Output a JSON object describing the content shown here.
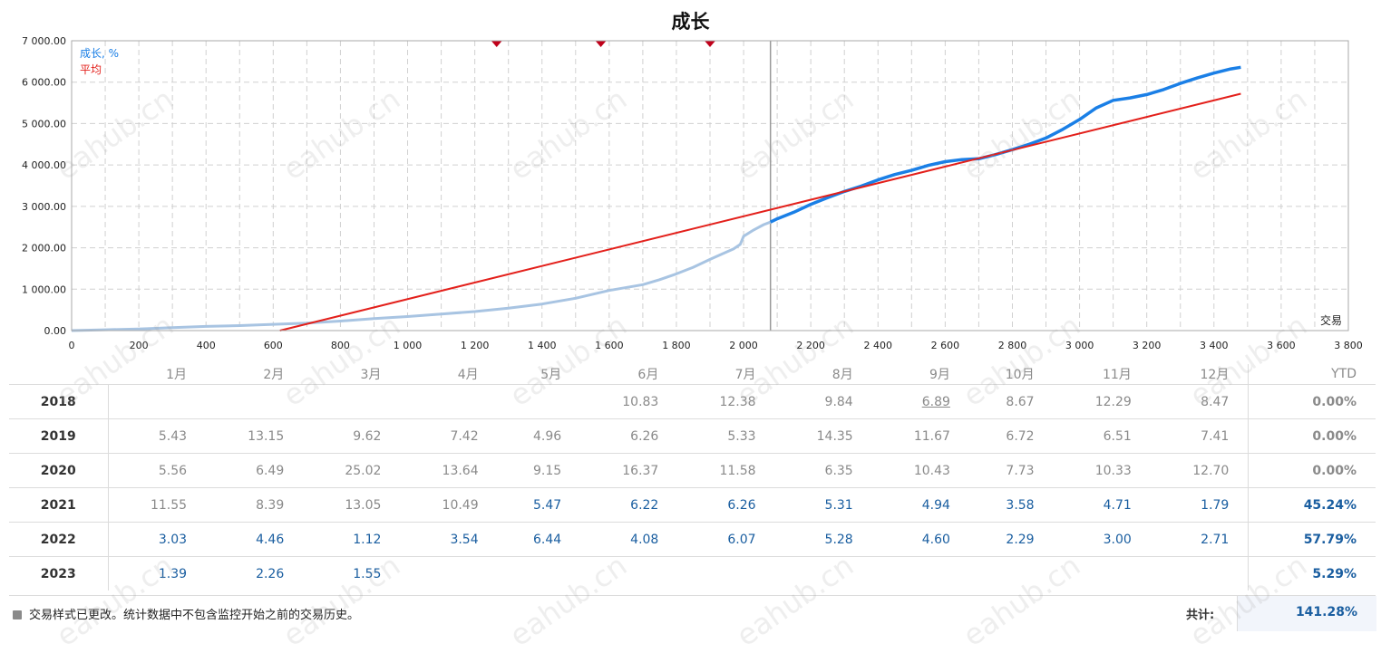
{
  "chart_data": {
    "type": "line",
    "title": "成长",
    "xlabel": "交易",
    "ylabel": "",
    "xlim": [
      0,
      3800
    ],
    "ylim": [
      0,
      7000
    ],
    "x_ticks": [
      0,
      200,
      400,
      600,
      800,
      1000,
      1200,
      1400,
      1600,
      1800,
      2000,
      2200,
      2400,
      2600,
      2800,
      3000,
      3200,
      3400,
      3600,
      3800
    ],
    "x_tick_labels": [
      "0",
      "200",
      "400",
      "600",
      "800",
      "1 000",
      "1 200",
      "1 400",
      "1 600",
      "1 800",
      "2 000",
      "2 200",
      "2 400",
      "2 600",
      "2 800",
      "3 000",
      "3 200",
      "3 400",
      "3 600",
      "3 800"
    ],
    "y_ticks": [
      0,
      1000,
      2000,
      3000,
      4000,
      5000,
      6000,
      7000
    ],
    "y_tick_labels": [
      "0.00",
      "1 000.00",
      "2 000.00",
      "3 000.00",
      "4 000.00",
      "5 000.00",
      "6 000.00",
      "7 000.00"
    ],
    "grid": true,
    "legend": "top-left",
    "monitor_start_x": 2080,
    "markers_x": [
      1265,
      1575,
      1900
    ],
    "series": [
      {
        "name": "成长, %",
        "color": "#1a7fe6",
        "history_color": "#a8c4e2",
        "x": [
          0,
          100,
          200,
          300,
          400,
          500,
          600,
          700,
          800,
          900,
          1000,
          1100,
          1200,
          1300,
          1400,
          1500,
          1600,
          1700,
          1750,
          1800,
          1850,
          1900,
          1950,
          1970,
          1990,
          2000,
          2030,
          2060,
          2080,
          2100,
          2150,
          2200,
          2250,
          2300,
          2350,
          2400,
          2450,
          2500,
          2550,
          2600,
          2650,
          2700,
          2750,
          2800,
          2850,
          2900,
          2950,
          3000,
          3050,
          3100,
          3150,
          3200,
          3250,
          3300,
          3350,
          3400,
          3450,
          3480
        ],
        "y": [
          0,
          20,
          40,
          70,
          100,
          120,
          150,
          180,
          230,
          290,
          340,
          400,
          460,
          540,
          640,
          780,
          970,
          1110,
          1230,
          1370,
          1530,
          1720,
          1900,
          1970,
          2080,
          2280,
          2430,
          2560,
          2620,
          2700,
          2860,
          3050,
          3210,
          3360,
          3490,
          3640,
          3770,
          3870,
          3990,
          4080,
          4130,
          4150,
          4250,
          4370,
          4500,
          4650,
          4860,
          5100,
          5380,
          5560,
          5620,
          5700,
          5820,
          5970,
          6100,
          6220,
          6320,
          6360
        ]
      },
      {
        "name": "平均",
        "color": "#e3201b",
        "x": [
          620,
          3480
        ],
        "y": [
          0,
          5720
        ]
      }
    ]
  },
  "table": {
    "months": [
      "1月",
      "2月",
      "3月",
      "4月",
      "5月",
      "6月",
      "7月",
      "8月",
      "9月",
      "10月",
      "11月",
      "12月"
    ],
    "ytd_header": "YTD",
    "rows": [
      {
        "year": "2018",
        "values": [
          "",
          "",
          "",
          "",
          "",
          "10.83",
          "12.38",
          "9.84",
          "6.89",
          "8.67",
          "12.29",
          "8.47"
        ],
        "ytd": "0.00%"
      },
      {
        "year": "2019",
        "values": [
          "5.43",
          "13.15",
          "9.62",
          "7.42",
          "4.96",
          "6.26",
          "5.33",
          "14.35",
          "11.67",
          "6.72",
          "6.51",
          "7.41"
        ],
        "ytd": "0.00%"
      },
      {
        "year": "2020",
        "values": [
          "5.56",
          "6.49",
          "25.02",
          "13.64",
          "9.15",
          "16.37",
          "11.58",
          "6.35",
          "10.43",
          "7.73",
          "10.33",
          "12.70"
        ],
        "ytd": "0.00%"
      },
      {
        "year": "2021",
        "values": [
          "11.55",
          "8.39",
          "13.05",
          "10.49",
          "5.47",
          "6.22",
          "6.26",
          "5.31",
          "4.94",
          "3.58",
          "4.71",
          "1.79"
        ],
        "ytd": "45.24%"
      },
      {
        "year": "2022",
        "values": [
          "3.03",
          "4.46",
          "1.12",
          "3.54",
          "6.44",
          "4.08",
          "6.07",
          "5.28",
          "4.60",
          "2.29",
          "3.00",
          "2.71"
        ],
        "ytd": "57.79%"
      },
      {
        "year": "2023",
        "values": [
          "1.39",
          "2.26",
          "1.55",
          "",
          "",
          "",
          "",
          "",
          "",
          "",
          "",
          ""
        ],
        "ytd": "5.29%"
      }
    ]
  },
  "footer": {
    "note": "交易样式已更改。统计数据中不包含监控开始之前的交易历史。",
    "total_label": "共计:",
    "total_value": "141.28%"
  },
  "watermark": "eahub.cn",
  "colors": {
    "blue_text": "#1a5ea0",
    "gray_text": "#8a8a8a",
    "grid": "#d0d0d0",
    "marker": "#c0001a"
  }
}
